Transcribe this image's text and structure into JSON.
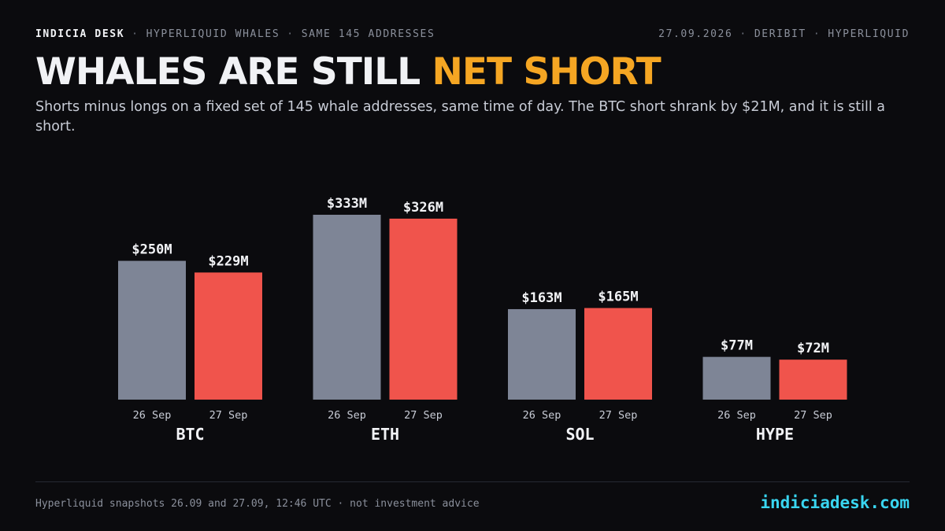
{
  "header": {
    "brand": "INDICIA DESK",
    "crumb_1": "HYPERLIQUID WHALES",
    "crumb_2": "SAME 145 ADDRESSES",
    "date": "27.09.2026",
    "source_1": "DERIBIT",
    "source_2": "HYPERLIQUID",
    "separator": "·"
  },
  "headline": {
    "part_1": "WHALES ARE STILL ",
    "part_2": "NET SHORT"
  },
  "subtitle": "Shorts minus longs on a fixed set of 145 whale addresses, same time of day. The BTC short shrank by $21M, and it is still a short.",
  "footer": {
    "note": "Hyperliquid snapshots 26.09 and 27.09, 12:46 UTC · not investment advice",
    "site": "indiciadesk.com"
  },
  "colors": {
    "background": "#0b0b0e",
    "bar_26_sep": "#7e8596",
    "bar_27_sep": "#f0544c",
    "accent": "#f5a623",
    "site": "#39d5f0"
  },
  "chart_data": {
    "type": "bar",
    "categories": [
      "BTC",
      "ETH",
      "SOL",
      "HYPE"
    ],
    "series": [
      {
        "name": "26 Sep",
        "values": [
          250,
          333,
          163,
          77
        ],
        "labels": [
          "$250M",
          "$333M",
          "$163M",
          "$77M"
        ]
      },
      {
        "name": "27 Sep",
        "values": [
          229,
          326,
          165,
          72
        ],
        "labels": [
          "$229M",
          "$326M",
          "$165M",
          "$72M"
        ]
      }
    ],
    "unit": "$M",
    "ylim": [
      0,
      333
    ],
    "grid": false,
    "legend": "none"
  }
}
